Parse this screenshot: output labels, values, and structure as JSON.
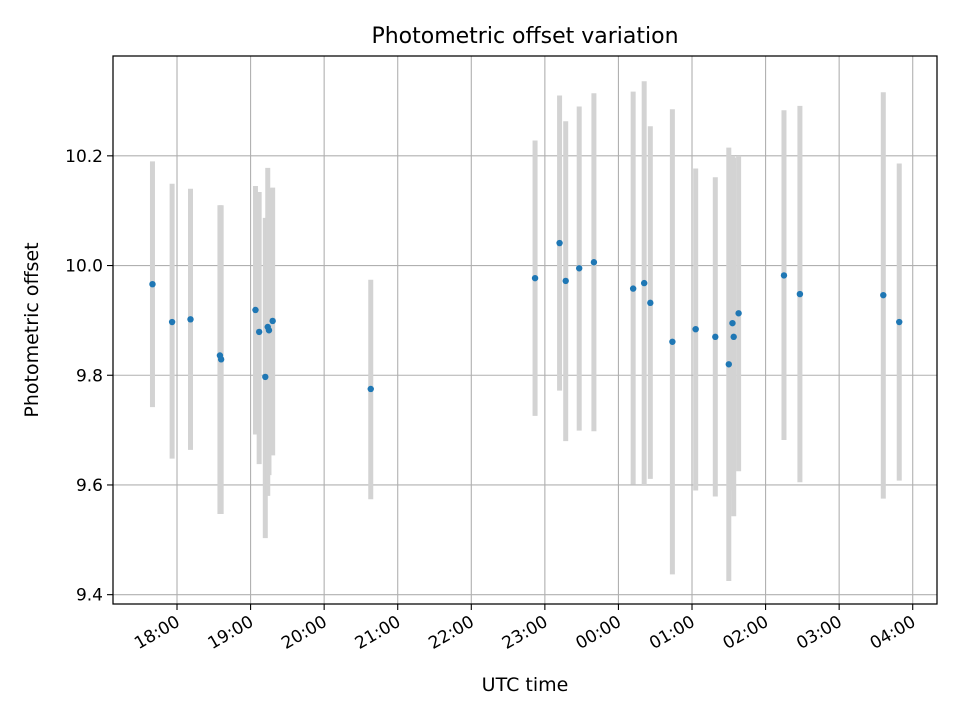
{
  "chart_data": {
    "type": "scatter",
    "title": "Photometric offset variation",
    "xlabel": "UTC time",
    "ylabel": "Photometric offset",
    "x_tick_labels": [
      "18:00",
      "19:00",
      "20:00",
      "21:00",
      "22:00",
      "23:00",
      "00:00",
      "01:00",
      "02:00",
      "03:00",
      "04:00"
    ],
    "y_tick_labels": [
      "9.4",
      "9.6",
      "9.8",
      "10.0",
      "10.2"
    ],
    "y_ticks": [
      9.4,
      9.6,
      9.8,
      10.0,
      10.2
    ],
    "xlim_hours": [
      17.13,
      28.33
    ],
    "ylim": [
      9.383,
      10.382
    ],
    "grid": true,
    "colors": {
      "marker": "#1f77b4",
      "errorbar": "#d3d3d3",
      "grid": "#b0b0b0"
    },
    "points": [
      {
        "x": "17:40",
        "y": 9.966,
        "ylo": 9.742,
        "yhi": 10.19
      },
      {
        "x": "17:56",
        "y": 9.897,
        "ylo": 9.648,
        "yhi": 10.149
      },
      {
        "x": "18:11",
        "y": 9.902,
        "ylo": 9.664,
        "yhi": 10.14
      },
      {
        "x": "18:35",
        "y": 9.836,
        "ylo": 9.547,
        "yhi": 10.11
      },
      {
        "x": "18:36",
        "y": 9.829,
        "ylo": 9.547,
        "yhi": 10.11
      },
      {
        "x": "19:04",
        "y": 9.919,
        "ylo": 9.692,
        "yhi": 10.145
      },
      {
        "x": "19:07",
        "y": 9.879,
        "ylo": 9.638,
        "yhi": 10.134
      },
      {
        "x": "19:12",
        "y": 9.797,
        "ylo": 9.503,
        "yhi": 10.087
      },
      {
        "x": "19:14",
        "y": 9.888,
        "ylo": 9.58,
        "yhi": 10.178
      },
      {
        "x": "19:15",
        "y": 9.882,
        "ylo": 9.618,
        "yhi": 10.141
      },
      {
        "x": "19:18",
        "y": 9.899,
        "ylo": 9.654,
        "yhi": 10.142
      },
      {
        "x": "20:38",
        "y": 9.775,
        "ylo": 9.574,
        "yhi": 9.974
      },
      {
        "x": "22:52",
        "y": 9.977,
        "ylo": 9.726,
        "yhi": 10.228
      },
      {
        "x": "23:12",
        "y": 10.041,
        "ylo": 9.772,
        "yhi": 10.31
      },
      {
        "x": "23:17",
        "y": 9.972,
        "ylo": 9.68,
        "yhi": 10.263
      },
      {
        "x": "23:28",
        "y": 9.995,
        "ylo": 9.699,
        "yhi": 10.29
      },
      {
        "x": "23:40",
        "y": 10.006,
        "ylo": 9.698,
        "yhi": 10.314
      },
      {
        "x": "00:12",
        "y": 9.958,
        "ylo": 9.601,
        "yhi": 10.317
      },
      {
        "x": "00:21",
        "y": 9.968,
        "ylo": 9.6,
        "yhi": 10.336
      },
      {
        "x": "00:26",
        "y": 9.932,
        "ylo": 9.611,
        "yhi": 10.254
      },
      {
        "x": "00:44",
        "y": 9.861,
        "ylo": 9.437,
        "yhi": 10.285
      },
      {
        "x": "01:03",
        "y": 9.884,
        "ylo": 9.59,
        "yhi": 10.177
      },
      {
        "x": "01:19",
        "y": 9.87,
        "ylo": 9.579,
        "yhi": 10.161
      },
      {
        "x": "01:30",
        "y": 9.82,
        "ylo": 9.425,
        "yhi": 10.215
      },
      {
        "x": "01:33",
        "y": 9.895,
        "ylo": 9.59,
        "yhi": 10.2
      },
      {
        "x": "01:34",
        "y": 9.87,
        "ylo": 9.543,
        "yhi": 10.197
      },
      {
        "x": "01:38",
        "y": 9.913,
        "ylo": 9.625,
        "yhi": 10.2
      },
      {
        "x": "02:15",
        "y": 9.982,
        "ylo": 9.682,
        "yhi": 10.283
      },
      {
        "x": "02:28",
        "y": 9.948,
        "ylo": 9.605,
        "yhi": 10.291
      },
      {
        "x": "03:36",
        "y": 9.946,
        "ylo": 9.575,
        "yhi": 10.316
      },
      {
        "x": "03:49",
        "y": 9.897,
        "ylo": 9.608,
        "yhi": 10.186
      }
    ]
  }
}
